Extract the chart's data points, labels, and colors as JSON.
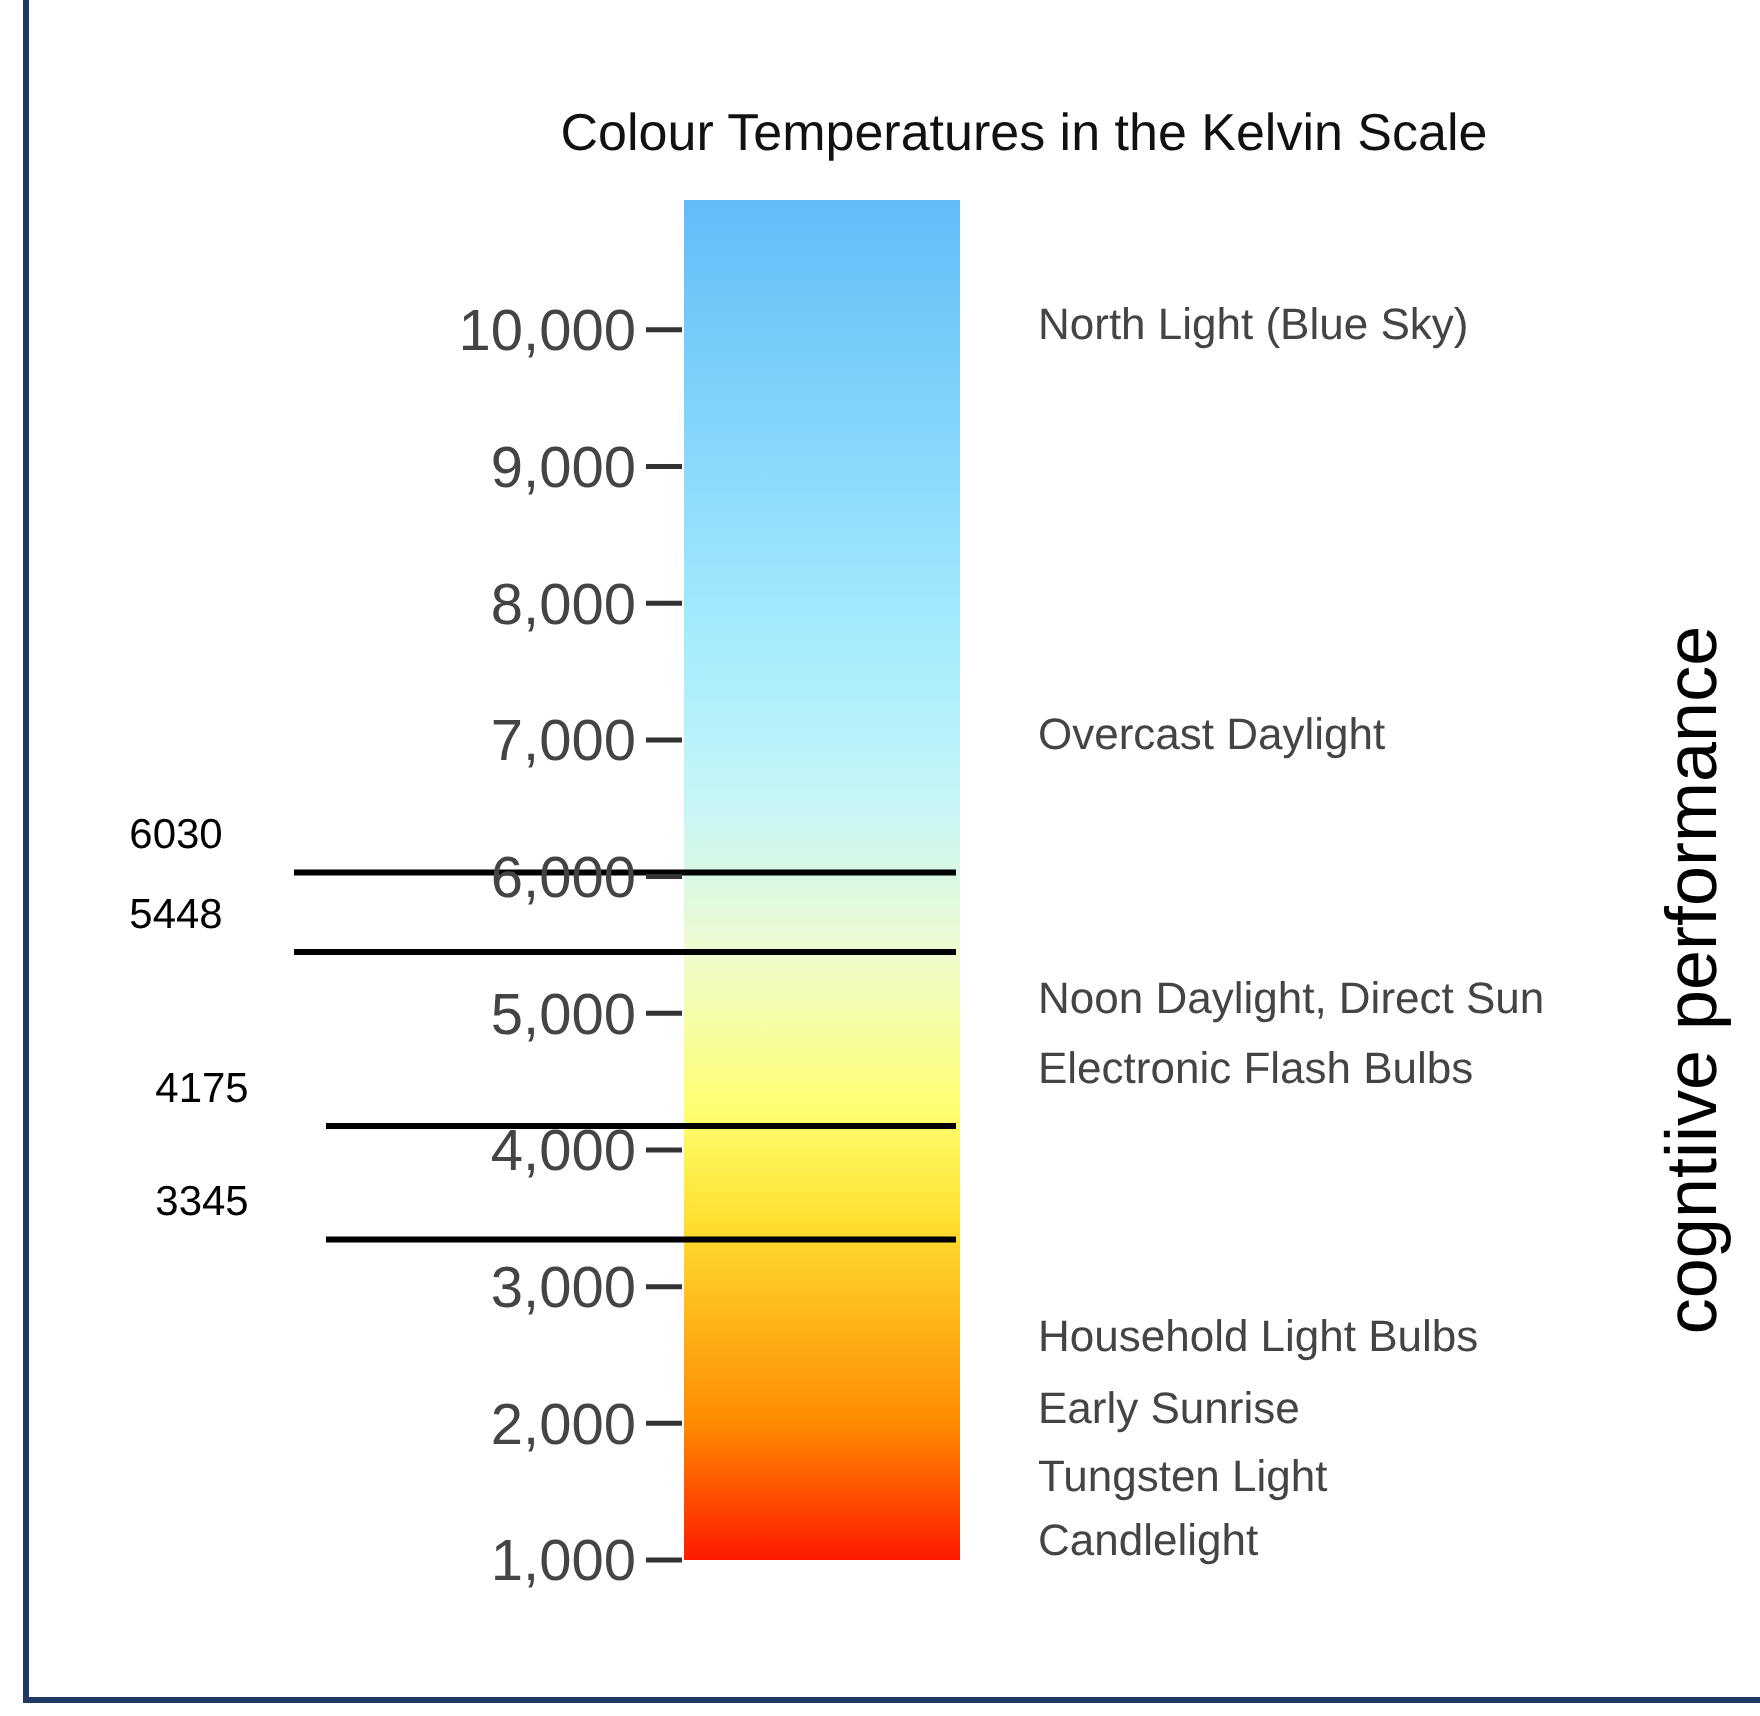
{
  "chart_data": {
    "type": "bar",
    "title": "Colour Temperatures in the Kelvin Scale",
    "categories": [
      null
    ],
    "base": [
      1000
    ],
    "values": [
      9950
    ],
    "ylim": [
      1000,
      10950
    ],
    "yticks": [
      {
        "value": 1000,
        "label": "1,000"
      },
      {
        "value": 2000,
        "label": "2,000"
      },
      {
        "value": 3000,
        "label": "3,000"
      },
      {
        "value": 4000,
        "label": "4,000"
      },
      {
        "value": 5000,
        "label": "5,000"
      },
      {
        "value": 6000,
        "label": "6,000"
      },
      {
        "value": 7000,
        "label": "7,000"
      },
      {
        "value": 8000,
        "label": "8,000"
      },
      {
        "value": 9000,
        "label": "9,000"
      },
      {
        "value": 10000,
        "label": "10,000"
      }
    ],
    "ref_lines": [
      {
        "axis": "y",
        "value": 6030,
        "label": "6030",
        "color": "#000000"
      },
      {
        "axis": "y",
        "value": 5448,
        "label": "5448",
        "color": "#000000"
      },
      {
        "axis": "y",
        "value": 4175,
        "label": "4175",
        "color": "#000000"
      },
      {
        "axis": "y",
        "value": 3345,
        "label": "3345",
        "color": "#000000"
      }
    ],
    "annotations": [
      "North Light (Blue Sky)",
      "Overcast Daylight",
      "Noon Daylight, Direct Sun",
      "Electronic Flash Bulbs",
      "Household Light Bulbs",
      "Early Sunrise",
      "Tungsten Light",
      "Candlelight",
      "cogntiive performance"
    ],
    "grid": false
  }
}
